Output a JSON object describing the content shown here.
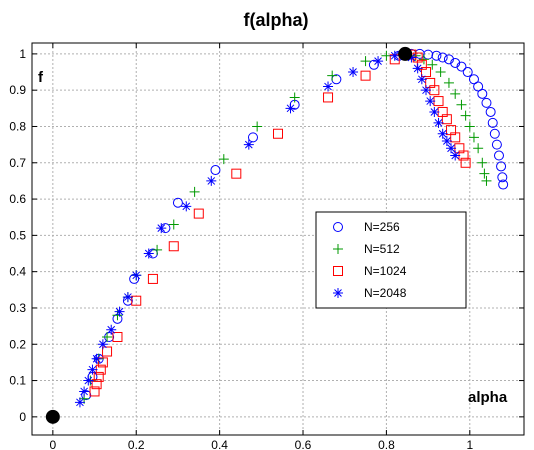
{
  "chart_data": {
    "type": "scatter",
    "title": "f(alpha)",
    "xlabel": "alpha",
    "ylabel": "f",
    "xlim": [
      -0.05,
      1.13
    ],
    "ylim": [
      -0.05,
      1.03
    ],
    "xticks": [
      0,
      0.2,
      0.4,
      0.6,
      0.8,
      1
    ],
    "yticks": [
      0,
      0.1,
      0.2,
      0.3,
      0.4,
      0.5,
      0.6,
      0.7,
      0.8,
      0.9,
      1
    ],
    "grid": true,
    "legend_position": "center-right",
    "series": [
      {
        "name": "N=256",
        "marker": "circle",
        "color": "#0000ff",
        "points": [
          [
            0.08,
            0.06
          ],
          [
            0.095,
            0.11
          ],
          [
            0.11,
            0.16
          ],
          [
            0.135,
            0.22
          ],
          [
            0.155,
            0.27
          ],
          [
            0.18,
            0.32
          ],
          [
            0.195,
            0.38
          ],
          [
            0.24,
            0.45
          ],
          [
            0.27,
            0.52
          ],
          [
            0.3,
            0.59
          ],
          [
            0.39,
            0.68
          ],
          [
            0.48,
            0.77
          ],
          [
            0.58,
            0.86
          ],
          [
            0.68,
            0.93
          ],
          [
            0.77,
            0.97
          ],
          [
            0.83,
            0.995
          ],
          [
            0.86,
            1.0
          ],
          [
            0.88,
            1.0
          ],
          [
            0.9,
            0.998
          ],
          [
            0.92,
            0.995
          ],
          [
            0.935,
            0.99
          ],
          [
            0.95,
            0.985
          ],
          [
            0.965,
            0.975
          ],
          [
            0.98,
            0.965
          ],
          [
            0.995,
            0.95
          ],
          [
            1.01,
            0.93
          ],
          [
            1.02,
            0.91
          ],
          [
            1.03,
            0.89
          ],
          [
            1.04,
            0.865
          ],
          [
            1.05,
            0.84
          ],
          [
            1.055,
            0.81
          ],
          [
            1.06,
            0.78
          ],
          [
            1.065,
            0.75
          ],
          [
            1.07,
            0.72
          ],
          [
            1.075,
            0.69
          ],
          [
            1.078,
            0.66
          ],
          [
            1.08,
            0.64
          ]
        ]
      },
      {
        "name": "N=512",
        "marker": "plus",
        "color": "#009900",
        "points": [
          [
            0.075,
            0.05
          ],
          [
            0.09,
            0.1
          ],
          [
            0.11,
            0.16
          ],
          [
            0.13,
            0.22
          ],
          [
            0.155,
            0.28
          ],
          [
            0.18,
            0.33
          ],
          [
            0.2,
            0.39
          ],
          [
            0.25,
            0.46
          ],
          [
            0.29,
            0.53
          ],
          [
            0.34,
            0.62
          ],
          [
            0.41,
            0.71
          ],
          [
            0.49,
            0.8
          ],
          [
            0.58,
            0.88
          ],
          [
            0.67,
            0.94
          ],
          [
            0.75,
            0.98
          ],
          [
            0.8,
            0.995
          ],
          [
            0.84,
            1.0
          ],
          [
            0.87,
            0.995
          ],
          [
            0.89,
            0.985
          ],
          [
            0.91,
            0.97
          ],
          [
            0.93,
            0.95
          ],
          [
            0.95,
            0.92
          ],
          [
            0.965,
            0.89
          ],
          [
            0.98,
            0.86
          ],
          [
            0.99,
            0.83
          ],
          [
            1.0,
            0.8
          ],
          [
            1.01,
            0.77
          ],
          [
            1.02,
            0.74
          ],
          [
            1.03,
            0.7
          ],
          [
            1.035,
            0.67
          ],
          [
            1.04,
            0.65
          ]
        ]
      },
      {
        "name": "N=1024",
        "marker": "square",
        "color": "#ff0000",
        "points": [
          [
            0.1,
            0.07
          ],
          [
            0.105,
            0.09
          ],
          [
            0.11,
            0.11
          ],
          [
            0.115,
            0.13
          ],
          [
            0.12,
            0.15
          ],
          [
            0.13,
            0.18
          ],
          [
            0.155,
            0.22
          ],
          [
            0.2,
            0.32
          ],
          [
            0.24,
            0.38
          ],
          [
            0.29,
            0.47
          ],
          [
            0.35,
            0.56
          ],
          [
            0.44,
            0.67
          ],
          [
            0.54,
            0.78
          ],
          [
            0.66,
            0.88
          ],
          [
            0.75,
            0.94
          ],
          [
            0.82,
            0.985
          ],
          [
            0.86,
            0.998
          ],
          [
            0.875,
            0.99
          ],
          [
            0.885,
            0.97
          ],
          [
            0.895,
            0.95
          ],
          [
            0.905,
            0.92
          ],
          [
            0.915,
            0.9
          ],
          [
            0.925,
            0.87
          ],
          [
            0.935,
            0.84
          ],
          [
            0.945,
            0.82
          ],
          [
            0.955,
            0.79
          ],
          [
            0.965,
            0.77
          ],
          [
            0.975,
            0.74
          ],
          [
            0.985,
            0.72
          ],
          [
            0.99,
            0.7
          ]
        ]
      },
      {
        "name": "N=2048",
        "marker": "asterisk",
        "color": "#0000ff",
        "points": [
          [
            0.065,
            0.04
          ],
          [
            0.075,
            0.07
          ],
          [
            0.085,
            0.1
          ],
          [
            0.095,
            0.13
          ],
          [
            0.105,
            0.16
          ],
          [
            0.12,
            0.2
          ],
          [
            0.14,
            0.24
          ],
          [
            0.16,
            0.29
          ],
          [
            0.18,
            0.33
          ],
          [
            0.2,
            0.39
          ],
          [
            0.23,
            0.45
          ],
          [
            0.26,
            0.52
          ],
          [
            0.32,
            0.58
          ],
          [
            0.38,
            0.65
          ],
          [
            0.47,
            0.75
          ],
          [
            0.57,
            0.85
          ],
          [
            0.66,
            0.91
          ],
          [
            0.72,
            0.95
          ],
          [
            0.78,
            0.98
          ],
          [
            0.82,
            0.995
          ],
          [
            0.84,
            1.0
          ],
          [
            0.86,
            0.99
          ],
          [
            0.875,
            0.96
          ],
          [
            0.885,
            0.93
          ],
          [
            0.895,
            0.9
          ],
          [
            0.905,
            0.87
          ],
          [
            0.915,
            0.84
          ],
          [
            0.925,
            0.81
          ],
          [
            0.935,
            0.78
          ],
          [
            0.945,
            0.76
          ],
          [
            0.955,
            0.74
          ],
          [
            0.965,
            0.72
          ]
        ]
      },
      {
        "name": "",
        "marker": "dot",
        "color": "#000000",
        "points": [
          [
            0,
            0
          ],
          [
            0.845,
            1.0
          ]
        ]
      }
    ]
  }
}
